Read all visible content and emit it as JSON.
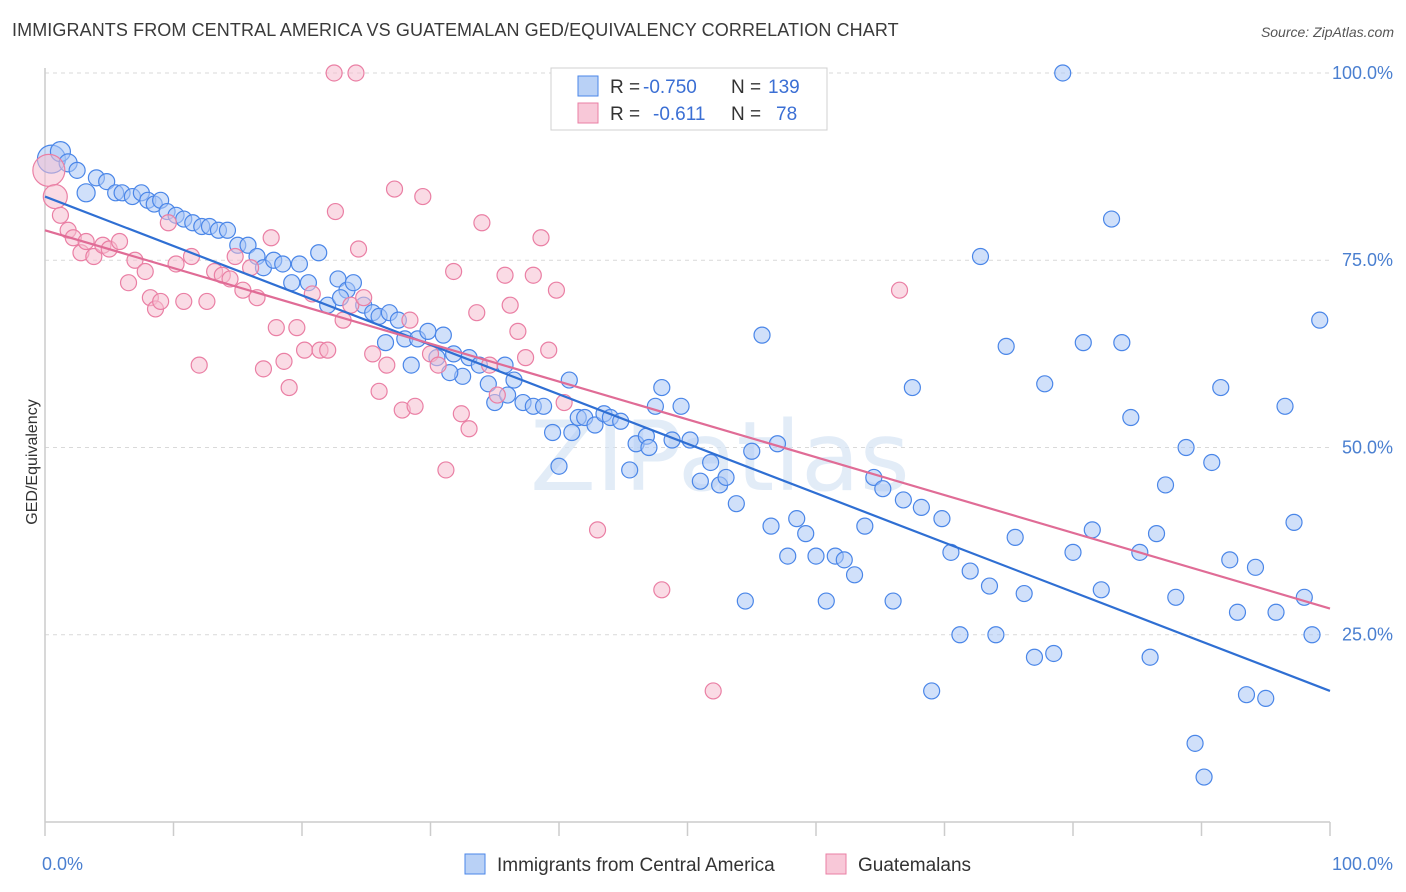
{
  "title": "IMMIGRANTS FROM CENTRAL AMERICA VS GUATEMALAN GED/EQUIVALENCY CORRELATION CHART",
  "source": "Source: ZipAtlas.com",
  "watermark": "ZIPatlas",
  "colors": {
    "blue": "#4a86e8",
    "blue_fill": "#a9c6f5",
    "blue_line": "#2f6fd3",
    "pink": "#ea7fa4",
    "pink_fill": "#f6bdd0",
    "pink_line": "#e06c96",
    "axis_text": "#4a7fd0",
    "grid": "#d9d9d9"
  },
  "legend": {
    "rows": [
      {
        "r_label": "R =",
        "r_value": "-0.750",
        "n_label": "N =",
        "n_value": "139"
      },
      {
        "r_label": "R =",
        "r_value": "-0.611",
        "n_label": "N =",
        "n_value": "78"
      }
    ]
  },
  "chart_data": {
    "type": "scatter",
    "title": "IMMIGRANTS FROM CENTRAL AMERICA VS GUATEMALAN GED/EQUIVALENCY CORRELATION CHART",
    "xlabel": "",
    "ylabel": "GED/Equivalency",
    "xlim": [
      0,
      100
    ],
    "ylim": [
      0,
      102
    ],
    "x_tick_labels": [
      "0.0%",
      "100.0%"
    ],
    "y_ticks": [
      {
        "value": 100,
        "label": "100.0%"
      },
      {
        "value": 75,
        "label": "75.0%"
      },
      {
        "value": 50,
        "label": "50.0%"
      },
      {
        "value": 25,
        "label": "25.0%"
      }
    ],
    "series": [
      {
        "name": "Immigrants from Central America",
        "color": "blue",
        "r": -0.75,
        "n": 139,
        "trend": {
          "x0": 0,
          "y0": 83.5,
          "x1": 100,
          "y1": 17.5
        },
        "points": [
          [
            0.5,
            88.5,
            14
          ],
          [
            1.2,
            89.5,
            10
          ],
          [
            1.8,
            88,
            9
          ],
          [
            2.5,
            87,
            8
          ],
          [
            3.2,
            84,
            9
          ],
          [
            4.0,
            86,
            8
          ],
          [
            4.8,
            85.5,
            8
          ],
          [
            5.5,
            84,
            8
          ],
          [
            6.0,
            84,
            8
          ],
          [
            6.8,
            83.5,
            8
          ],
          [
            7.5,
            84,
            8
          ],
          [
            8.0,
            83,
            8
          ],
          [
            8.5,
            82.5,
            8
          ],
          [
            9.0,
            83,
            8
          ],
          [
            9.5,
            81.5,
            8
          ],
          [
            10.2,
            81,
            8
          ],
          [
            10.8,
            80.5,
            8
          ],
          [
            11.5,
            80,
            8
          ],
          [
            12.2,
            79.5,
            8
          ],
          [
            12.8,
            79.5,
            8
          ],
          [
            13.5,
            79,
            8
          ],
          [
            14.2,
            79,
            8
          ],
          [
            15.0,
            77,
            8
          ],
          [
            15.8,
            77,
            8
          ],
          [
            16.5,
            75.5,
            8
          ],
          [
            17.0,
            74,
            8
          ],
          [
            17.8,
            75,
            8
          ],
          [
            18.5,
            74.5,
            8
          ],
          [
            19.2,
            72,
            8
          ],
          [
            19.8,
            74.5,
            8
          ],
          [
            20.5,
            72,
            8
          ],
          [
            21.3,
            76,
            8
          ],
          [
            22.0,
            69,
            8
          ],
          [
            22.8,
            72.5,
            8
          ],
          [
            23.5,
            71,
            8
          ],
          [
            24.0,
            72,
            8
          ],
          [
            24.8,
            69,
            8
          ],
          [
            25.5,
            68,
            8
          ],
          [
            26.0,
            67.5,
            8
          ],
          [
            26.8,
            68,
            8
          ],
          [
            27.5,
            67,
            8
          ],
          [
            28.0,
            64.5,
            8
          ],
          [
            28.5,
            61,
            8
          ],
          [
            29.0,
            64.5,
            8
          ],
          [
            29.8,
            65.5,
            8
          ],
          [
            30.5,
            62,
            8
          ],
          [
            31.0,
            65,
            8
          ],
          [
            31.8,
            62.5,
            8
          ],
          [
            32.5,
            59.5,
            8
          ],
          [
            33.0,
            62,
            8
          ],
          [
            33.8,
            61,
            8
          ],
          [
            34.5,
            58.5,
            8
          ],
          [
            35.0,
            56,
            8
          ],
          [
            35.8,
            61,
            8
          ],
          [
            36.5,
            59,
            8
          ],
          [
            37.2,
            56,
            8
          ],
          [
            38.0,
            55.5,
            8
          ],
          [
            38.8,
            55.5,
            8
          ],
          [
            39.5,
            52,
            8
          ],
          [
            40.0,
            47.5,
            8
          ],
          [
            40.8,
            59,
            8
          ],
          [
            41.5,
            54,
            8
          ],
          [
            42.0,
            54,
            8
          ],
          [
            42.8,
            53,
            8
          ],
          [
            43.5,
            54.5,
            8
          ],
          [
            44.0,
            54,
            8
          ],
          [
            44.8,
            53.5,
            8
          ],
          [
            45.5,
            47,
            8
          ],
          [
            46.0,
            50.5,
            8
          ],
          [
            46.8,
            51.5,
            8
          ],
          [
            47.5,
            55.5,
            8
          ],
          [
            48.0,
            58,
            8
          ],
          [
            48.8,
            51,
            8
          ],
          [
            49.5,
            55.5,
            8
          ],
          [
            50.2,
            51,
            8
          ],
          [
            51.0,
            45.5,
            8
          ],
          [
            51.8,
            48,
            8
          ],
          [
            52.5,
            45,
            8
          ],
          [
            53.0,
            46,
            8
          ],
          [
            53.8,
            42.5,
            8
          ],
          [
            54.5,
            29.5,
            8
          ],
          [
            55.0,
            49.5,
            8
          ],
          [
            55.8,
            65,
            8
          ],
          [
            56.5,
            39.5,
            8
          ],
          [
            57.0,
            50.5,
            8
          ],
          [
            57.8,
            35.5,
            8
          ],
          [
            58.5,
            40.5,
            8
          ],
          [
            59.2,
            38.5,
            8
          ],
          [
            60.0,
            35.5,
            8
          ],
          [
            60.8,
            29.5,
            8
          ],
          [
            61.5,
            35.5,
            8
          ],
          [
            62.2,
            35,
            8
          ],
          [
            63.0,
            33,
            8
          ],
          [
            63.8,
            39.5,
            8
          ],
          [
            64.5,
            46,
            8
          ],
          [
            65.2,
            44.5,
            8
          ],
          [
            66.0,
            29.5,
            8
          ],
          [
            66.8,
            43,
            8
          ],
          [
            67.5,
            58,
            8
          ],
          [
            68.2,
            42,
            8
          ],
          [
            69.0,
            17.5,
            8
          ],
          [
            69.8,
            40.5,
            8
          ],
          [
            70.5,
            36,
            8
          ],
          [
            71.2,
            25,
            8
          ],
          [
            72.0,
            33.5,
            8
          ],
          [
            72.8,
            75.5,
            8
          ],
          [
            73.5,
            31.5,
            8
          ],
          [
            74.0,
            25,
            8
          ],
          [
            74.8,
            63.5,
            8
          ],
          [
            75.5,
            38,
            8
          ],
          [
            76.2,
            30.5,
            8
          ],
          [
            77.0,
            22,
            8
          ],
          [
            77.8,
            58.5,
            8
          ],
          [
            78.5,
            22.5,
            8
          ],
          [
            79.2,
            100,
            8
          ],
          [
            80.0,
            36,
            8
          ],
          [
            80.8,
            64,
            8
          ],
          [
            81.5,
            39,
            8
          ],
          [
            82.2,
            31,
            8
          ],
          [
            83.0,
            80.5,
            8
          ],
          [
            83.8,
            64,
            8
          ],
          [
            84.5,
            54,
            8
          ],
          [
            85.2,
            36,
            8
          ],
          [
            86.0,
            22,
            8
          ],
          [
            86.5,
            38.5,
            8
          ],
          [
            87.2,
            45,
            8
          ],
          [
            88.0,
            30,
            8
          ],
          [
            88.8,
            50,
            8
          ],
          [
            89.5,
            10.5,
            8
          ],
          [
            90.2,
            6,
            8
          ],
          [
            90.8,
            48,
            8
          ],
          [
            91.5,
            58,
            8
          ],
          [
            92.2,
            35,
            8
          ],
          [
            92.8,
            28,
            8
          ],
          [
            93.5,
            17,
            8
          ],
          [
            94.2,
            34,
            8
          ],
          [
            95.0,
            16.5,
            8
          ],
          [
            95.8,
            28,
            8
          ],
          [
            96.5,
            55.5,
            8
          ],
          [
            97.2,
            40,
            8
          ],
          [
            98.0,
            30,
            8
          ],
          [
            98.6,
            25,
            8
          ],
          [
            99.2,
            67,
            8
          ],
          [
            23.0,
            70,
            8
          ],
          [
            26.5,
            64,
            8
          ],
          [
            31.5,
            60,
            8
          ],
          [
            36.0,
            57,
            8
          ],
          [
            41.0,
            52,
            8
          ],
          [
            47.0,
            50,
            8
          ]
        ]
      },
      {
        "name": "Guatemalans",
        "color": "pink",
        "r": -0.611,
        "n": 78,
        "trend": {
          "x0": 0,
          "y0": 79,
          "x1": 100,
          "y1": 28.5
        },
        "points": [
          [
            0.3,
            87,
            16
          ],
          [
            0.8,
            83.5,
            12
          ],
          [
            1.2,
            81,
            8
          ],
          [
            1.8,
            79,
            8
          ],
          [
            2.2,
            78,
            8
          ],
          [
            2.8,
            76,
            8
          ],
          [
            3.2,
            77.5,
            8
          ],
          [
            3.8,
            75.5,
            8
          ],
          [
            4.5,
            77,
            8
          ],
          [
            5.0,
            76.5,
            8
          ],
          [
            5.8,
            77.5,
            8
          ],
          [
            6.5,
            72,
            8
          ],
          [
            7.0,
            75,
            8
          ],
          [
            7.8,
            73.5,
            8
          ],
          [
            8.2,
            70,
            8
          ],
          [
            8.6,
            68.5,
            8
          ],
          [
            9.0,
            69.5,
            8
          ],
          [
            9.6,
            80,
            8
          ],
          [
            10.2,
            74.5,
            8
          ],
          [
            10.8,
            69.5,
            8
          ],
          [
            11.4,
            75.5,
            8
          ],
          [
            12.0,
            61,
            8
          ],
          [
            12.6,
            69.5,
            8
          ],
          [
            13.2,
            73.5,
            8
          ],
          [
            13.8,
            73,
            8
          ],
          [
            14.4,
            72.5,
            8
          ],
          [
            14.8,
            75.5,
            8
          ],
          [
            15.4,
            71,
            8
          ],
          [
            16.0,
            74,
            8
          ],
          [
            16.5,
            70,
            8
          ],
          [
            17.0,
            60.5,
            8
          ],
          [
            17.6,
            78,
            8
          ],
          [
            18.0,
            66,
            8
          ],
          [
            18.6,
            61.5,
            8
          ],
          [
            19.0,
            58,
            8
          ],
          [
            19.6,
            66,
            8
          ],
          [
            20.2,
            63,
            8
          ],
          [
            20.8,
            70.5,
            8
          ],
          [
            21.4,
            63,
            8
          ],
          [
            22.0,
            63,
            8
          ],
          [
            22.6,
            81.5,
            8
          ],
          [
            23.2,
            67,
            8
          ],
          [
            23.8,
            69,
            8
          ],
          [
            24.4,
            76.5,
            8
          ],
          [
            24.8,
            70,
            8
          ],
          [
            25.5,
            62.5,
            8
          ],
          [
            26.0,
            57.5,
            8
          ],
          [
            26.6,
            61,
            8
          ],
          [
            27.2,
            84.5,
            8
          ],
          [
            27.8,
            55,
            8
          ],
          [
            28.4,
            67,
            8
          ],
          [
            28.8,
            55.5,
            8
          ],
          [
            29.4,
            83.5,
            8
          ],
          [
            30.0,
            62.5,
            8
          ],
          [
            30.6,
            61,
            8
          ],
          [
            31.2,
            47,
            8
          ],
          [
            31.8,
            73.5,
            8
          ],
          [
            32.4,
            54.5,
            8
          ],
          [
            33.0,
            52.5,
            8
          ],
          [
            33.6,
            68,
            8
          ],
          [
            34.0,
            80,
            8
          ],
          [
            34.6,
            61,
            8
          ],
          [
            35.2,
            57,
            8
          ],
          [
            35.8,
            73,
            8
          ],
          [
            36.2,
            69,
            8
          ],
          [
            36.8,
            65.5,
            8
          ],
          [
            37.4,
            62,
            8
          ],
          [
            38.0,
            73,
            8
          ],
          [
            38.6,
            78,
            8
          ],
          [
            39.2,
            63,
            8
          ],
          [
            39.8,
            71,
            8
          ],
          [
            40.4,
            56,
            8
          ],
          [
            22.5,
            100,
            8
          ],
          [
            24.2,
            100,
            8
          ],
          [
            43.0,
            39,
            8
          ],
          [
            48.0,
            31,
            8
          ],
          [
            52.0,
            17.5,
            8
          ],
          [
            66.5,
            71,
            8
          ]
        ]
      }
    ]
  },
  "bottom_legend": [
    {
      "label": "Immigrants from Central America"
    },
    {
      "label": "Guatemalans"
    }
  ]
}
